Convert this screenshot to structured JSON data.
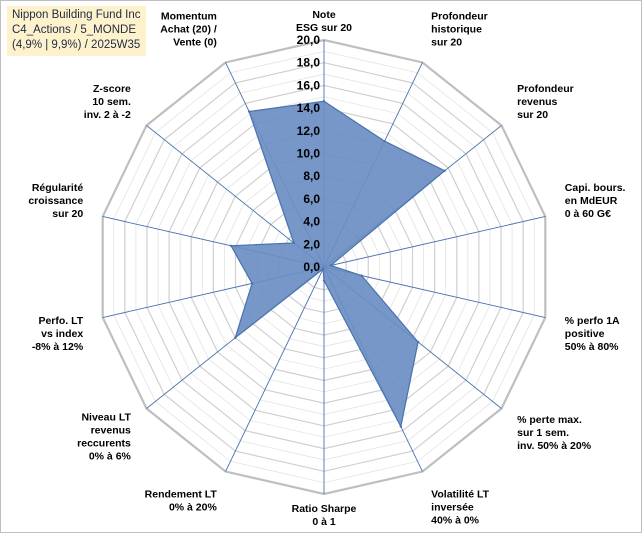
{
  "info_box": {
    "line1": "Nippon Building Fund Inc",
    "line2": "C4_Actions / 5_MONDE",
    "line3": "(4,9% | 9,9%) / 2025W35"
  },
  "colors": {
    "fill": "#6a8ec3",
    "stroke": "#4a72ad",
    "grid": "#d9d9d9",
    "axis": "#4a72ad",
    "info_bg": "#fdf2cc"
  },
  "chart_data": {
    "type": "radar",
    "title": "",
    "rlim": [
      0,
      20
    ],
    "r_ticks": [
      "0,0",
      "2,0",
      "4,0",
      "6,0",
      "8,0",
      "10,0",
      "12,0",
      "14,0",
      "16,0",
      "18,0",
      "20,0"
    ],
    "grid": true,
    "categories": [
      [
        "Note",
        "ESG sur 20"
      ],
      [
        "Profondeur",
        "historique",
        "sur 20"
      ],
      [
        "Profondeur",
        "revenus",
        "sur 20"
      ],
      [
        "Capi. bours.",
        "en MdEUR",
        "0 à 60 G€"
      ],
      [
        "% perfo 1A",
        "positive",
        "50% à 80%"
      ],
      [
        "% perte max.",
        "sur 1 sem.",
        "inv. 50% à 20%"
      ],
      [
        "Volatilité LT",
        "inversée",
        "40% à 0%"
      ],
      [
        "Ratio Sharpe",
        "0 à 1"
      ],
      [
        "Rendement LT",
        "0% à 20%"
      ],
      [
        "Niveau LT",
        "revenus",
        "reccurents",
        "0% à 6%"
      ],
      [
        "Perfo. LT",
        "vs index",
        "-8% à 12%"
      ],
      [
        "Régularité",
        "croissance",
        "sur 20"
      ],
      [
        "Z-score",
        "10 sem.",
        "inv. 2 à -2"
      ],
      [
        "Momentum",
        "Achat (20) /",
        "Vente (0)"
      ]
    ],
    "values": [
      14.6,
      12.3,
      13.6,
      0.6,
      3.4,
      10.6,
      15.6,
      1.2,
      0.2,
      10.0,
      6.5,
      8.4,
      3.4,
      15.2
    ]
  }
}
